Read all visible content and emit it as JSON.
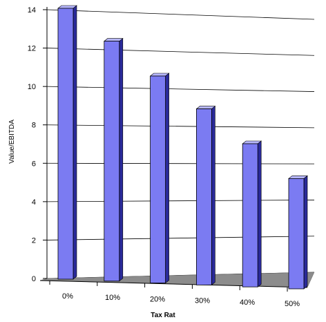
{
  "chart_data": {
    "type": "bar",
    "categories": [
      "0%",
      "10%",
      "20%",
      "30%",
      "40%",
      "50%"
    ],
    "values": [
      14,
      12.4,
      10.7,
      9.1,
      7.4,
      5.7
    ],
    "title": "",
    "xlabel": "Tax Rat",
    "ylabel": "Value/EBITDA",
    "ylim": [
      0,
      14
    ],
    "yticks": [
      "0",
      "2",
      "4",
      "6",
      "8",
      "10",
      "12",
      "14"
    ],
    "grid": true,
    "style": "3d",
    "colors": {
      "bar_front": "#7b7bf2",
      "bar_side": "#2a2a9a",
      "bar_top": "#b6b6fb",
      "floor": "#8c8c8c"
    }
  }
}
